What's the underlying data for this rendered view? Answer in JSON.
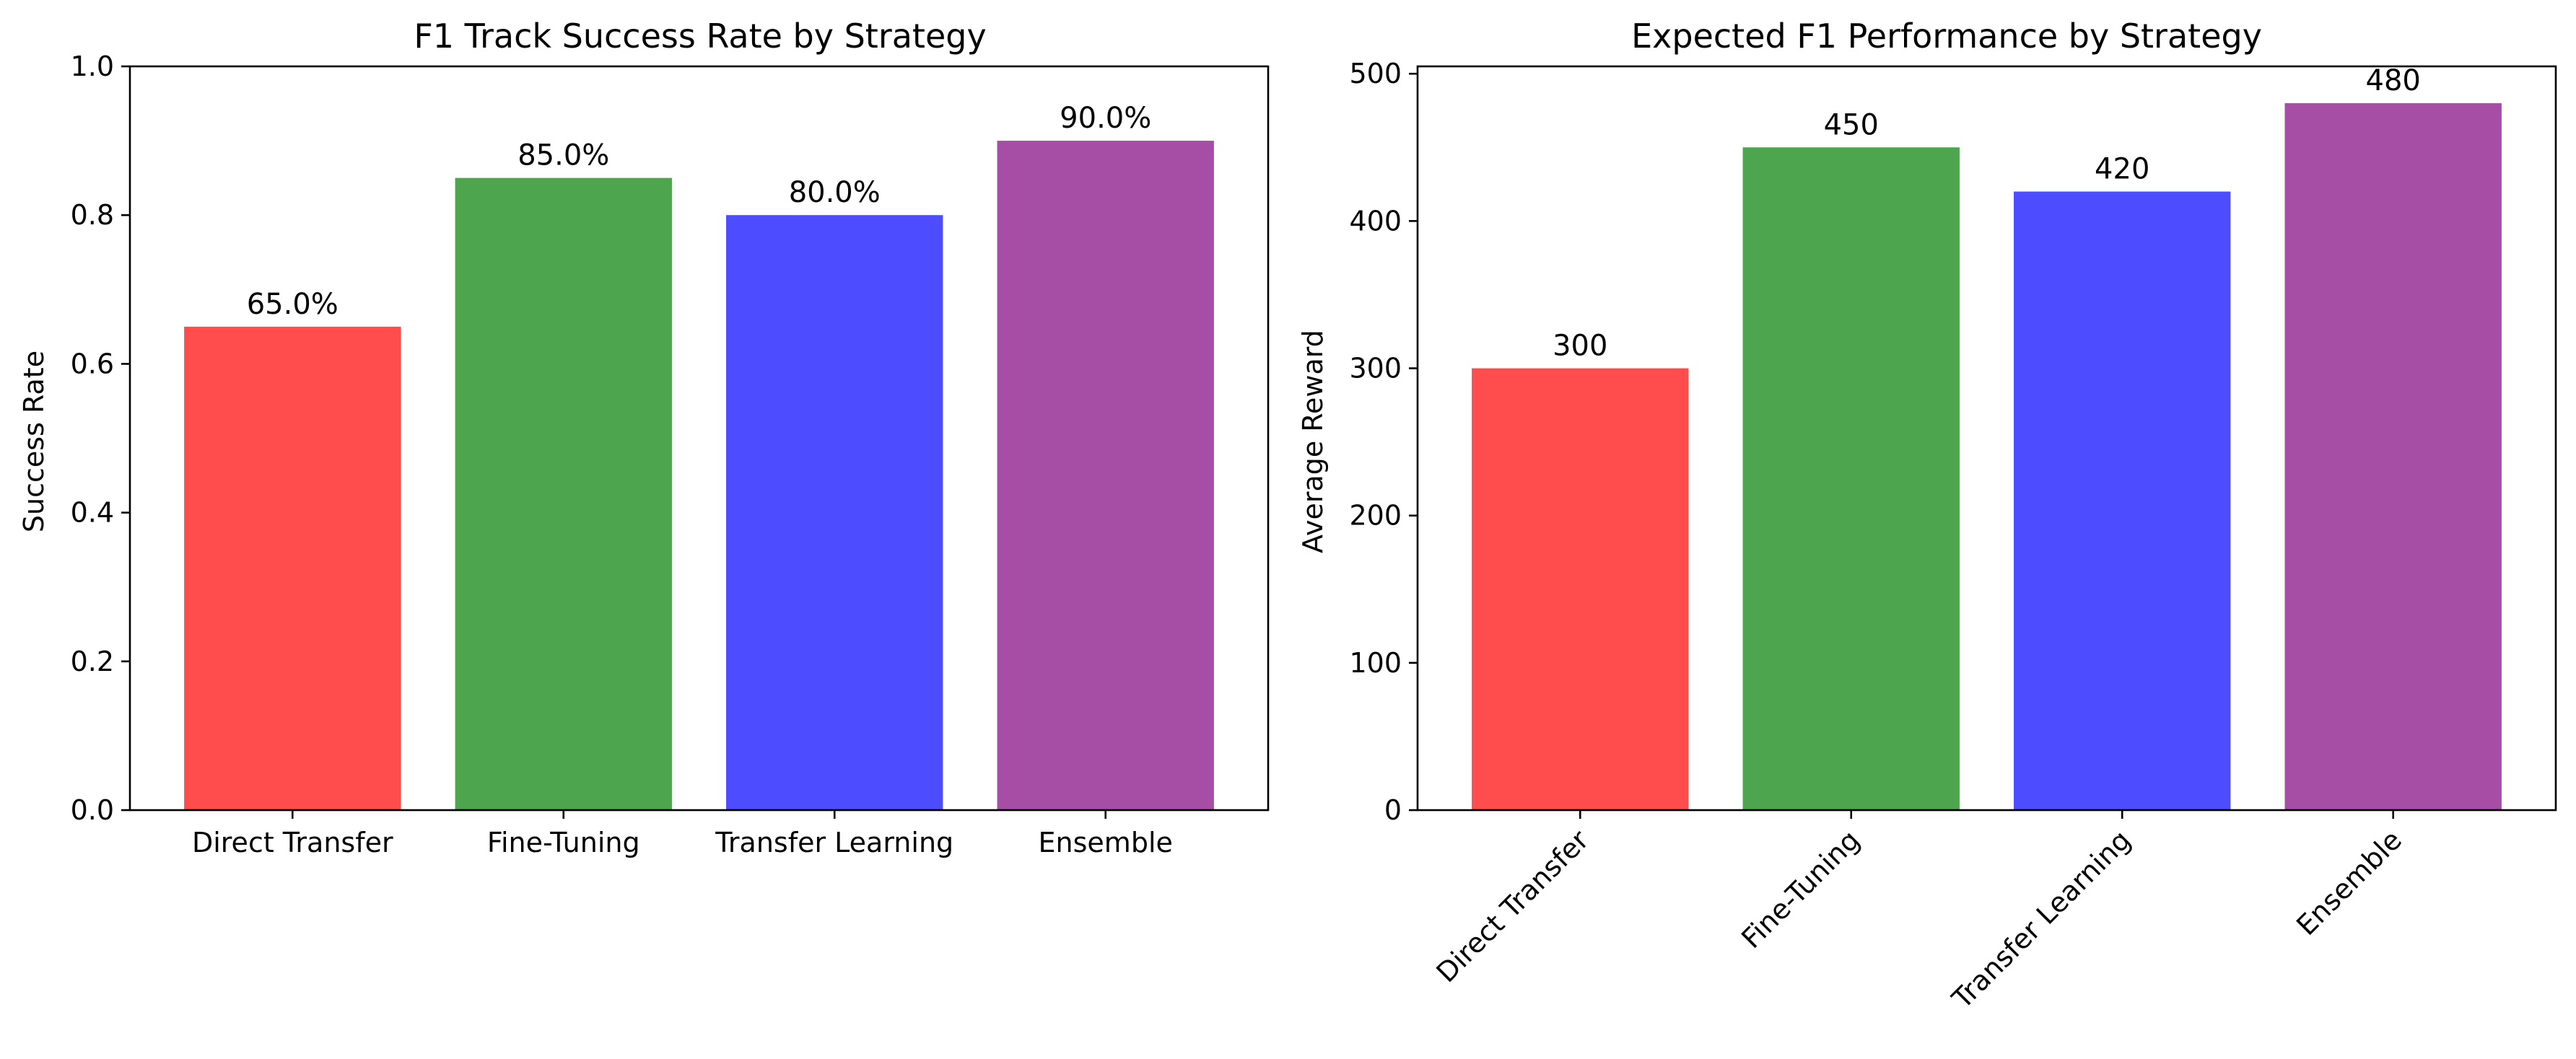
{
  "chart_data": [
    {
      "type": "bar",
      "title": "F1 Track Success Rate by Strategy",
      "xlabel": "",
      "ylabel": "Success Rate",
      "categories": [
        "Direct Transfer",
        "Fine-Tuning",
        "Transfer Learning",
        "Ensemble"
      ],
      "values": [
        0.65,
        0.85,
        0.8,
        0.9
      ],
      "value_labels": [
        "65.0%",
        "85.0%",
        "80.0%",
        "90.0%"
      ],
      "colors": [
        "#ff4d4d",
        "#4da64d",
        "#4d4dff",
        "#a64da6"
      ],
      "ylim": [
        0,
        1.0
      ],
      "yticks": [
        "0.0",
        "0.2",
        "0.4",
        "0.6",
        "0.8",
        "1.0"
      ],
      "grid": false
    },
    {
      "type": "bar",
      "title": "Expected F1 Performance by Strategy",
      "xlabel": "",
      "ylabel": "Average Reward",
      "categories": [
        "Direct Transfer",
        "Fine-Tuning",
        "Transfer Learning",
        "Ensemble"
      ],
      "values": [
        300,
        450,
        420,
        480
      ],
      "value_labels": [
        "300",
        "450",
        "420",
        "480"
      ],
      "colors": [
        "#ff4d4d",
        "#4da64d",
        "#4d4dff",
        "#a64da6"
      ],
      "ylim": [
        0,
        505
      ],
      "yticks": [
        "0",
        "100",
        "200",
        "300",
        "400",
        "500"
      ],
      "xtick_rotation": 45,
      "grid": false
    }
  ]
}
